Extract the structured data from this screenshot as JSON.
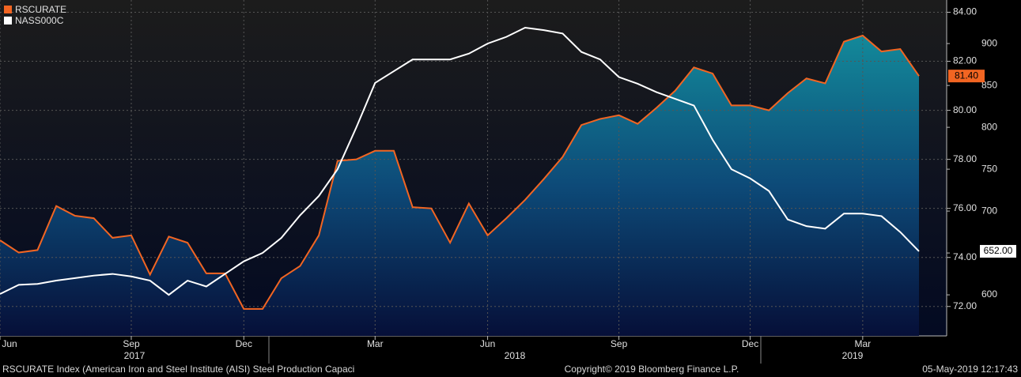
{
  "chart_data": {
    "type": "line",
    "categories": [
      "Jun",
      null,
      null,
      null,
      null,
      null,
      null,
      "Sep",
      null,
      null,
      null,
      null,
      null,
      "Dec",
      null,
      null,
      null,
      null,
      null,
      null,
      "Mar",
      null,
      null,
      null,
      null,
      null,
      "Jun",
      null,
      null,
      null,
      null,
      null,
      null,
      "Sep",
      null,
      null,
      null,
      null,
      null,
      null,
      "Dec",
      null,
      null,
      null,
      null,
      null,
      "Mar",
      null,
      null,
      null
    ],
    "x_groups": [
      "2017",
      "2018",
      "2019"
    ],
    "series": [
      {
        "name": "RSCURATE",
        "color": "#f26522",
        "last_label": "81.40",
        "values": [
          74.7,
          74.2,
          74.3,
          76.1,
          75.7,
          75.6,
          74.8,
          74.9,
          73.3,
          74.85,
          74.6,
          73.35,
          73.35,
          71.9,
          71.9,
          73.15,
          73.65,
          74.9,
          77.94,
          78.0,
          78.35,
          78.35,
          76.05,
          76.0,
          74.6,
          76.2,
          74.9,
          75.6,
          76.35,
          77.2,
          78.1,
          79.4,
          79.65,
          79.8,
          79.45,
          80.1,
          80.8,
          81.75,
          81.5,
          80.2,
          80.2,
          80.0,
          80.7,
          81.3,
          81.1,
          82.8,
          83.05,
          82.4,
          82.5,
          81.4
        ]
      },
      {
        "name": "NASS000C",
        "color": "#ffffff",
        "axis": "y2",
        "last_label": "652.00",
        "values": [
          601,
          612,
          613,
          617,
          620,
          623,
          625,
          622,
          617,
          600,
          617,
          610,
          625,
          640,
          650,
          668,
          695,
          718,
          750,
          800,
          853,
          867,
          881,
          881,
          881,
          888,
          900,
          908,
          919,
          916,
          912,
          890,
          881,
          860,
          852,
          842,
          834,
          826,
          785,
          750,
          739,
          724,
          690,
          682,
          679,
          697,
          697,
          694,
          675,
          652
        ]
      }
    ],
    "ylim": [
      70.8,
      84.5
    ],
    "yticks": [
      {
        "value": 72,
        "label": "72.00"
      },
      {
        "value": 74,
        "label": "74.00"
      },
      {
        "value": 76,
        "label": "76.00"
      },
      {
        "value": 78,
        "label": "78.00"
      },
      {
        "value": 80,
        "label": "80.00"
      },
      {
        "value": 82,
        "label": "82.00"
      },
      {
        "value": 84,
        "label": "84.00"
      }
    ],
    "y2lim": [
      551,
      952
    ],
    "y2ticks": [
      600,
      650,
      700,
      750,
      800,
      850,
      900
    ],
    "grid": true,
    "legend": "top-left",
    "footer": {
      "left": "RSCURATE Index (American Iron and Steel Institute (AISI) Steel Production Capaci",
      "center": "Copyright© 2019 Bloomberg Finance L.P.",
      "right": "05-May-2019 12:17:43"
    }
  }
}
